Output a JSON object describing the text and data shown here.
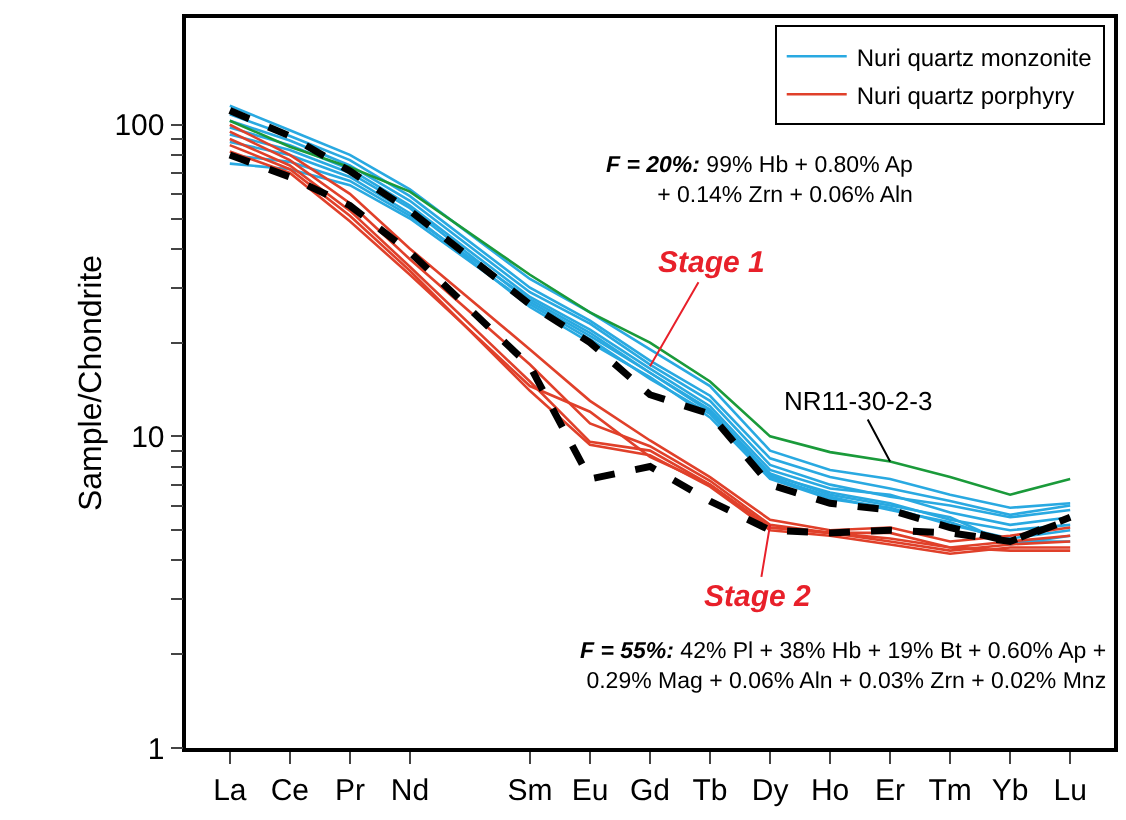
{
  "chart_data": {
    "type": "line",
    "ylabel": "Sample/Chondrite",
    "log": true,
    "ylim": [
      1,
      220
    ],
    "yticks": [
      1,
      {
        "value": 2,
        "label": null
      },
      {
        "value": 3,
        "label": null
      },
      {
        "value": 4,
        "label": null
      },
      {
        "value": 5,
        "label": null
      },
      {
        "value": 6,
        "label": null
      },
      {
        "value": 7,
        "label": null
      },
      {
        "value": 8,
        "label": null
      },
      {
        "value": 9,
        "label": null
      },
      10,
      {
        "value": 20,
        "label": null
      },
      {
        "value": 30,
        "label": null
      },
      {
        "value": 40,
        "label": null
      },
      {
        "value": 50,
        "label": null
      },
      {
        "value": 60,
        "label": null
      },
      {
        "value": 70,
        "label": null
      },
      {
        "value": 80,
        "label": null
      },
      {
        "value": 90,
        "label": null
      },
      100
    ],
    "categories": [
      "La",
      "Ce",
      "Pr",
      "Nd",
      null,
      "Sm",
      "Eu",
      "Gd",
      "Tb",
      "Dy",
      "Ho",
      "Er",
      "Tm",
      "Yb",
      "Lu"
    ],
    "legend": "top right",
    "series": [
      {
        "name": "Nuri quartz monzonite",
        "color": "#29a9e1",
        "values": [
          115,
          96,
          80,
          62,
          null,
          32,
          25,
          19,
          14.5,
          9.0,
          7.8,
          7.3,
          6.5,
          5.9,
          6.1
        ]
      },
      {
        "color": "#29a9e1",
        "values": [
          108,
          92,
          77,
          59,
          null,
          30,
          23.5,
          17.5,
          13.5,
          8.5,
          7.4,
          6.8,
          6.2,
          5.6,
          6.0
        ]
      },
      {
        "color": "#29a9e1",
        "values": [
          103,
          89,
          74,
          57,
          null,
          29,
          23,
          17,
          13,
          8.1,
          7.0,
          6.4,
          6.0,
          5.5,
          5.8
        ]
      },
      {
        "color": "#29a9e1",
        "values": [
          98,
          86,
          72,
          55,
          null,
          28,
          22,
          16.5,
          12.5,
          7.8,
          6.8,
          6.5,
          5.7,
          5.2,
          5.5
        ]
      },
      {
        "color": "#29a9e1",
        "values": [
          93,
          83,
          70,
          54,
          null,
          27,
          21,
          16,
          12,
          7.5,
          6.6,
          6.1,
          5.4,
          5.0,
          5.2
        ]
      },
      {
        "color": "#29a9e1",
        "values": [
          88,
          80,
          68,
          52,
          null,
          26,
          20,
          15.5,
          11.5,
          7.3,
          6.3,
          5.9,
          5.2,
          4.7,
          5.0
        ]
      },
      {
        "color": "#29a9e1",
        "values": [
          80,
          76,
          66,
          51,
          null,
          27.5,
          21.5,
          16,
          12.2,
          7.6,
          6.5,
          6.0,
          5.5,
          4.5,
          4.8
        ]
      },
      {
        "color": "#29a9e1",
        "values": [
          75,
          72,
          64,
          50,
          null,
          26.5,
          20.5,
          15.3,
          11.8,
          7.4,
          6.4,
          5.8,
          5.3,
          4.6,
          4.6
        ]
      },
      {
        "name": "Nuri quartz porphyry",
        "color": "#e0402a",
        "values": [
          100,
          80,
          60,
          40,
          null,
          19,
          13,
          9.7,
          7.4,
          5.4,
          5.0,
          5.1,
          4.6,
          4.8,
          5.1
        ]
      },
      {
        "color": "#e0402a",
        "values": [
          95,
          77,
          56,
          37,
          null,
          17,
          11,
          9.3,
          7.2,
          5.2,
          4.9,
          4.9,
          4.4,
          4.6,
          4.8
        ]
      },
      {
        "color": "#e0402a",
        "values": [
          90,
          74,
          53,
          35,
          null,
          15,
          9.6,
          9.0,
          7.0,
          5.1,
          4.9,
          4.6,
          4.3,
          4.5,
          4.6
        ]
      },
      {
        "color": "#e0402a",
        "values": [
          86,
          72,
          51,
          34,
          null,
          14,
          9.4,
          8.7,
          6.9,
          5.0,
          4.8,
          4.5,
          4.2,
          4.4,
          4.4
        ]
      },
      {
        "color": "#e0402a",
        "values": [
          82,
          70,
          49,
          33,
          null,
          14.5,
          12,
          8.6,
          7.0,
          5.1,
          4.9,
          4.7,
          4.4,
          4.3,
          4.3
        ]
      },
      {
        "color": "#1a9a3a",
        "values": [
          103,
          85,
          73,
          61,
          null,
          33,
          25,
          20,
          15,
          10,
          8.9,
          8.3,
          7.4,
          6.5,
          7.3
        ]
      },
      {
        "color": "#000000",
        "line_style": "dashed",
        "values": [
          111,
          92,
          71,
          53,
          null,
          26.5,
          20,
          13.6,
          11.8,
          7.0,
          6.1,
          5.8,
          5.1,
          4.6,
          5.5
        ]
      },
      {
        "color": "#000000",
        "line_style": "dashed",
        "values": [
          80,
          68,
          55,
          39,
          null,
          16.8,
          7.3,
          8.0,
          6.2,
          5.0,
          4.9,
          5.0,
          4.9,
          4.6,
          5.4
        ]
      }
    ],
    "annotations": [
      "F = 20%: 99% Hb + 0.80% Ap\n+ 0.14% Zrn + 0.06% Aln",
      "F = 55%: 42% Pl + 38% Hb + 19% Bt + 0.60% Ap +\n0.29% Mag + 0.06% Aln + 0.03% Zrn + 0.02% Mnz",
      {
        "text": "Stage 1",
        "x": "Gd",
        "y": 16.8
      },
      {
        "text": "Stage 2",
        "x": "Dy",
        "y": 5.2
      },
      {
        "text": "NR11-30-2-3",
        "x": "Er",
        "y": 8.3
      }
    ]
  }
}
